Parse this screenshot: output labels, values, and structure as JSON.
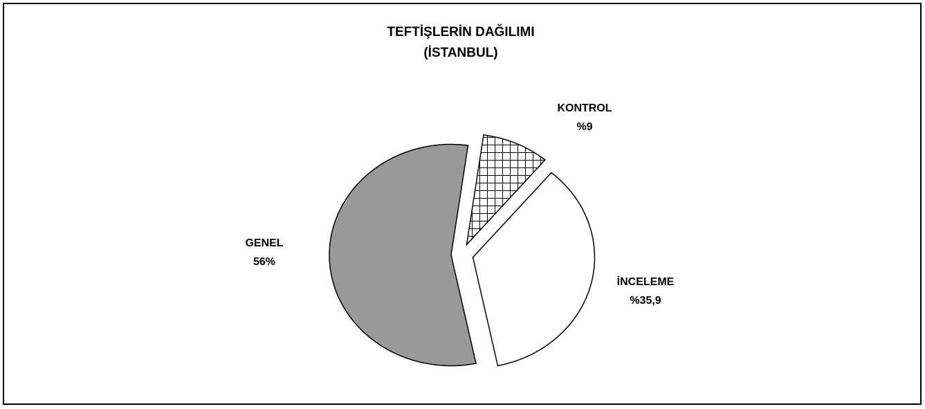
{
  "chart_data": {
    "type": "pie",
    "title": "TEFTİŞLERİN DAĞILIMI",
    "subtitle": "(İSTANBUL)",
    "categories": [
      "KONTROL",
      "İNCELEME",
      "GENEL"
    ],
    "values": [
      9,
      35.9,
      56
    ],
    "value_labels": [
      "%9",
      "%35,9",
      "56%"
    ],
    "colors": [
      "#ffffff",
      "#ffffff",
      "#999999"
    ],
    "patterns": [
      "crosshatch",
      "none",
      "none"
    ]
  }
}
